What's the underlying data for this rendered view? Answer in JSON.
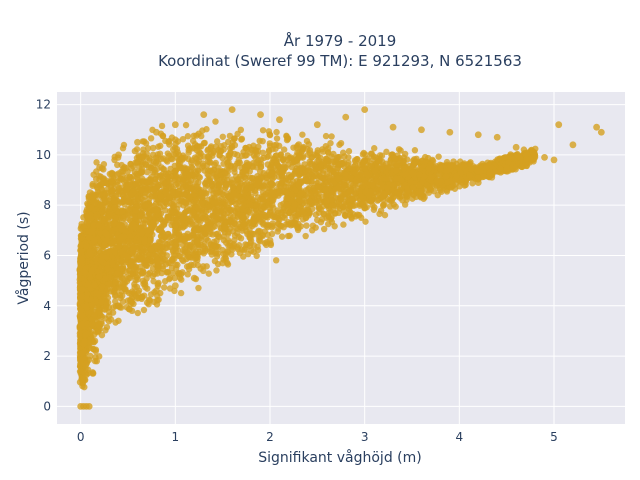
{
  "chart_data": {
    "type": "scatter",
    "title_line1": "År 1979 - 2019",
    "title_line2": "Koordinat (Sweref 99 TM): E 921293, N 6521563",
    "xlabel": "Signifikant våghöjd (m)",
    "ylabel": "Vågperiod (s)",
    "xlim": [
      -0.25,
      5.75
    ],
    "ylim": [
      -0.7,
      12.5
    ],
    "xticks": [
      0,
      1,
      2,
      3,
      4,
      5
    ],
    "yticks": [
      0,
      2,
      4,
      6,
      8,
      10,
      12
    ],
    "grid": true,
    "marker_color": "#d4a020",
    "plot_bg": "#e8e8f0",
    "series": [
      {
        "points": [
          [
            0.0,
            0.0
          ],
          [
            0.03,
            0.0
          ],
          [
            0.06,
            0.0
          ],
          [
            0.09,
            0.0
          ],
          [
            0.02,
            1.1
          ],
          [
            0.05,
            1.3
          ],
          [
            0.1,
            2.0
          ],
          [
            0.15,
            2.6
          ],
          [
            0.2,
            3.2
          ],
          [
            0.3,
            3.6
          ],
          [
            0.4,
            4.0
          ],
          [
            0.5,
            4.2
          ],
          [
            0.6,
            4.3
          ],
          [
            0.8,
            4.6
          ],
          [
            1.0,
            4.8
          ],
          [
            1.2,
            5.1
          ],
          [
            1.5,
            5.7
          ],
          [
            1.8,
            6.2
          ],
          [
            2.0,
            6.6
          ],
          [
            2.3,
            7.1
          ],
          [
            2.6,
            7.5
          ],
          [
            3.0,
            7.9
          ],
          [
            3.4,
            8.2
          ],
          [
            3.8,
            8.6
          ],
          [
            4.2,
            8.9
          ],
          [
            4.5,
            9.4
          ],
          [
            4.7,
            9.7
          ],
          [
            5.0,
            9.8
          ],
          [
            0.1,
            8.5
          ],
          [
            0.2,
            9.5
          ],
          [
            0.4,
            10.0
          ],
          [
            0.6,
            10.5
          ],
          [
            0.8,
            10.9
          ],
          [
            1.0,
            11.2
          ],
          [
            1.3,
            11.6
          ],
          [
            1.6,
            11.8
          ],
          [
            1.9,
            11.6
          ],
          [
            2.1,
            11.4
          ],
          [
            2.5,
            11.2
          ],
          [
            2.8,
            11.5
          ],
          [
            3.0,
            11.8
          ],
          [
            3.3,
            11.1
          ],
          [
            3.6,
            11.0
          ],
          [
            3.9,
            10.9
          ],
          [
            4.2,
            10.8
          ],
          [
            4.4,
            10.7
          ],
          [
            4.6,
            10.3
          ],
          [
            4.9,
            9.9
          ],
          [
            5.05,
            11.2
          ],
          [
            5.2,
            10.4
          ],
          [
            5.45,
            11.1
          ],
          [
            5.5,
            10.9
          ]
        ]
      }
    ]
  }
}
